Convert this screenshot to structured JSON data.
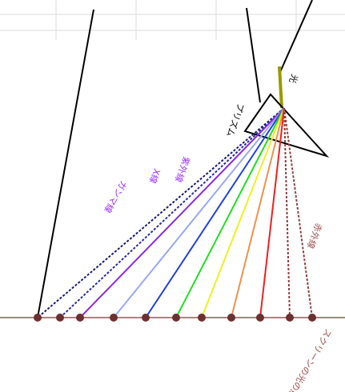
{
  "labels": {
    "prism": "プリズム",
    "light": "光",
    "ultraviolet": "紫外線",
    "xray": "X線",
    "gamma": "ガンマ線",
    "infrared": "赤外線",
    "screen": "スクリーンの光の点"
  }
}
